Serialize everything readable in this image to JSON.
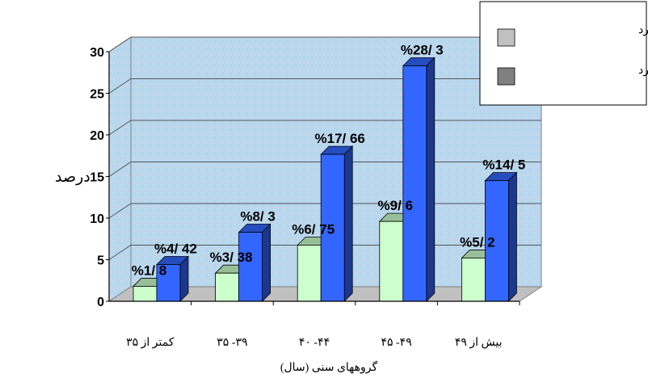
{
  "chart_data": {
    "type": "bar",
    "ylabel": "درصد",
    "xlabel": "گروههای سنی (سال)",
    "ylim": [
      0,
      30
    ],
    "yticks": [
      "0",
      "5",
      "10",
      "15",
      "20",
      "25",
      "30"
    ],
    "categories": [
      "کمتر از ۳۵",
      "۳۹- ۳۵",
      "۴۴- ۴۰",
      "۴۹- ۴۵",
      "بیش از ۴۹"
    ],
    "series": [
      {
        "name": "اختلالات شانه ندارد",
        "color": "#ccffcc",
        "values": [
          1.8,
          3.38,
          6.75,
          9.6,
          5.2
        ],
        "labels": [
          "%1/ 8",
          "%3/ 38",
          "%6/ 75",
          "%9/ 6",
          "%5/ 2"
        ]
      },
      {
        "name": "اختلالات شانه دارد",
        "color": "#3366ff",
        "values": [
          4.42,
          8.3,
          17.66,
          28.3,
          14.5
        ],
        "labels": [
          "%4/ 42",
          "%8/ 3",
          "%17/ 66",
          "%28/ 3",
          "%14/ 5"
        ]
      }
    ],
    "legend": {
      "position": "top-right",
      "items": [
        {
          "label": "اختلالات شانه ندارد",
          "color": "#c0c0c0"
        },
        {
          "label": "اختلالات شانه دارد",
          "color": "#808080"
        }
      ]
    },
    "grid": true
  }
}
